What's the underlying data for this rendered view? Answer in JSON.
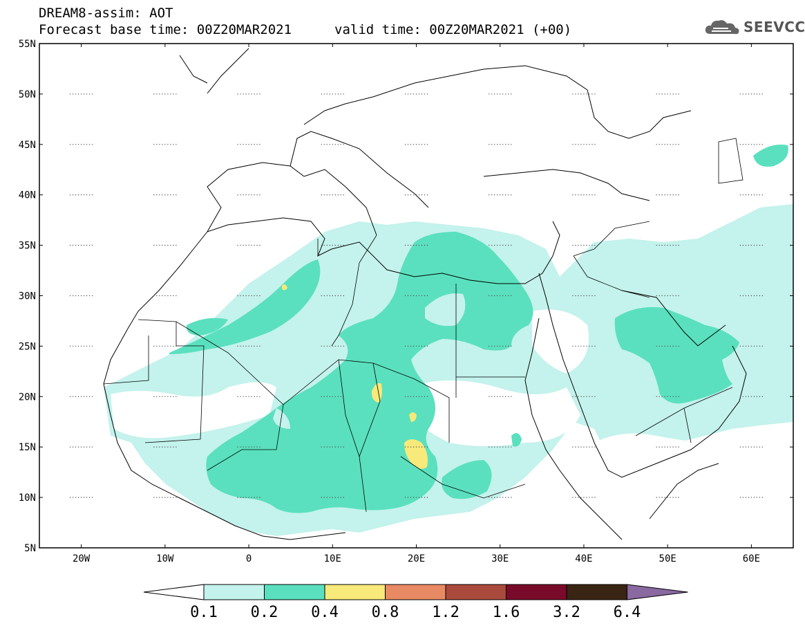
{
  "header": {
    "line1": "DREAM8-assim: AOT",
    "line2": "Forecast base time: 00Z20MAR2021",
    "line3": "valid time: 00Z20MAR2021 (+00)",
    "logo": "SEEVCCC"
  },
  "map": {
    "lon_range": [
      -25,
      65
    ],
    "lat_range": [
      5,
      55
    ],
    "lat_ticks": [
      "55N",
      "50N",
      "45N",
      "40N",
      "35N",
      "30N",
      "25N",
      "20N",
      "15N",
      "10N",
      "5N"
    ],
    "lon_ticks": [
      "20W",
      "10W",
      "0",
      "10E",
      "20E",
      "30E",
      "40E",
      "50E",
      "60E"
    ]
  },
  "colorbar": {
    "labels": [
      "0.1",
      "0.2",
      "0.4",
      "0.8",
      "1.2",
      "1.6",
      "3.2",
      "6.4"
    ],
    "colors": [
      "#ffffff",
      "#c4f2ec",
      "#5ae0be",
      "#f7e97a",
      "#e88a64",
      "#a94a3c",
      "#7a0a2a",
      "#3a2414",
      "#8a68a0"
    ]
  }
}
